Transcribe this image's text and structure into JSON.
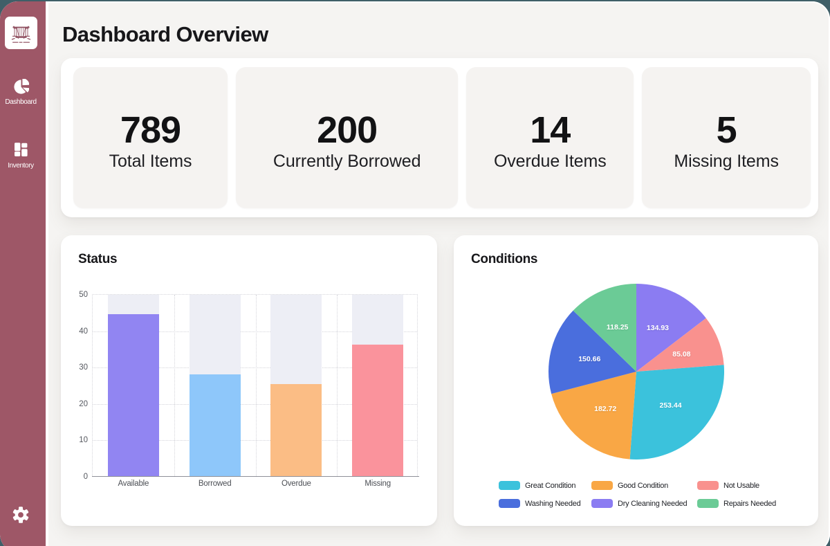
{
  "backdrop_color": "#3f5f68",
  "sidebar": {
    "color": "#9e5767",
    "logo_icon": "museum-logo",
    "items": [
      {
        "icon": "pie-chart-icon",
        "label": "Dashboard"
      },
      {
        "icon": "grid-icon",
        "label": "Inventory"
      }
    ],
    "settings_icon": "gear-icon"
  },
  "header": {
    "title": "Dashboard Overview"
  },
  "stats": [
    {
      "value": "789",
      "label": "Total Items"
    },
    {
      "value": "200",
      "label": "Currently Borrowed"
    },
    {
      "value": "14",
      "label": "Overdue Items"
    },
    {
      "value": "5",
      "label": "Missing Items"
    }
  ],
  "chart_data": [
    {
      "type": "bar",
      "title": "Status",
      "categories": [
        "Available",
        "Borrowed",
        "Overdue",
        "Missing"
      ],
      "values": [
        44.5,
        28,
        25.3,
        36.1
      ],
      "bar_colors": [
        "#9185f2",
        "#8ec7fa",
        "#fbbd85",
        "#fa939c"
      ],
      "track_color": "#edeef5",
      "xlabel": "",
      "ylabel": "",
      "ylim": [
        0,
        50
      ],
      "yticks": [
        0,
        10,
        20,
        30,
        40,
        50
      ],
      "grid": "dotted",
      "legend_position": "none"
    },
    {
      "type": "pie",
      "title": "Conditions",
      "slices": [
        {
          "label": "Dry Cleaning Needed",
          "value": 134.93,
          "color": "#8b7cf2",
          "data_label": "134.93"
        },
        {
          "label": "Not Usable",
          "value": 85.08,
          "color": "#f9918e",
          "data_label": "85.08"
        },
        {
          "label": "Great Condition",
          "value": 253.44,
          "color": "#3bc2dc",
          "data_label": "253.44"
        },
        {
          "label": "Good Condition",
          "value": 182.72,
          "color": "#f9a745",
          "data_label": "182.72"
        },
        {
          "label": "Washing Needed",
          "value": 150.66,
          "color": "#4a6edd",
          "data_label": "150.66"
        },
        {
          "label": "Repairs Needed",
          "value": 118.25,
          "color": "#6bcb96",
          "data_label": "118.25"
        }
      ],
      "start_angle_deg": 0,
      "legend_position": "bottom",
      "legend_order": [
        "Great Condition",
        "Good Condition",
        "Not Usable",
        "Washing Needed",
        "Dry Cleaning Needed",
        "Repairs Needed"
      ]
    }
  ]
}
